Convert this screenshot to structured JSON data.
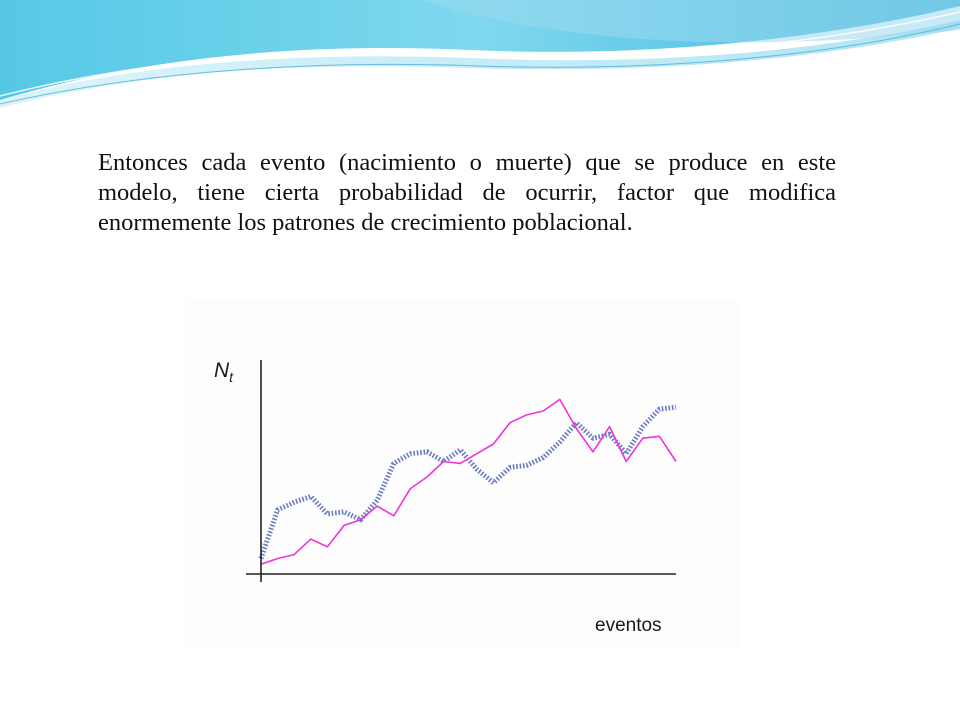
{
  "slide": {
    "paragraph": "Entonces cada  evento (nacimiento o muerte) que se produce en este modelo, tiene cierta probabilidad de ocurrir, factor que modifica enormemente los patrones de crecimiento poblacional."
  },
  "colors": {
    "wave_primary": "#4fc3e0",
    "wave_light": "#bfe9f4",
    "series_magenta": "#ee33dd",
    "series_dotted": "#6a7cc0",
    "axis": "#222222"
  },
  "chart_data": {
    "type": "line",
    "ylabel": "N",
    "ylabel_subscript": "t",
    "xlabel": "eventos",
    "xlim": [
      0,
      100
    ],
    "ylim": [
      0,
      100
    ],
    "grid": false,
    "legend": "none",
    "x": [
      0,
      4,
      8,
      12,
      16,
      20,
      24,
      28,
      32,
      36,
      40,
      44,
      48,
      52,
      56,
      60,
      64,
      68,
      72,
      76,
      80,
      84,
      88,
      92,
      96,
      100
    ],
    "series": [
      {
        "style": "solid",
        "color": "#ee33dd",
        "values": [
          5,
          8,
          10,
          18,
          14,
          25,
          28,
          35,
          30,
          44,
          50,
          58,
          57,
          62,
          67,
          78,
          82,
          84,
          90,
          75,
          63,
          76,
          58,
          70,
          71,
          58
        ]
      },
      {
        "style": "dotted",
        "color": "#6a7cc0",
        "values": [
          8,
          33,
          37,
          40,
          31,
          32,
          28,
          38,
          57,
          62,
          63,
          58,
          64,
          54,
          47,
          55,
          56,
          60,
          68,
          78,
          70,
          72,
          62,
          76,
          85,
          86
        ]
      }
    ]
  }
}
